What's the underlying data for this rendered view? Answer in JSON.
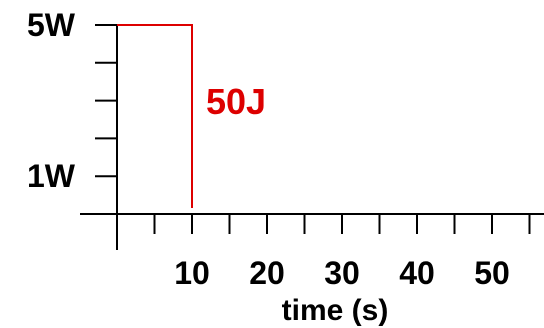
{
  "chart_data": {
    "type": "line",
    "title": "",
    "xlabel": "time (s)",
    "ylabel": "",
    "xlim": [
      0,
      58
    ],
    "ylim": [
      0,
      5
    ],
    "x_ticks": [
      0,
      5,
      10,
      15,
      20,
      25,
      30,
      35,
      40,
      45,
      50,
      55
    ],
    "x_tick_labels": [
      {
        "x": 10,
        "label": "10"
      },
      {
        "x": 20,
        "label": "20"
      },
      {
        "x": 30,
        "label": "30"
      },
      {
        "x": 40,
        "label": "40"
      },
      {
        "x": 50,
        "label": "50"
      }
    ],
    "y_ticks": [
      1,
      2,
      3,
      4,
      5
    ],
    "y_tick_labels": [
      {
        "y": 5,
        "label": "5W"
      },
      {
        "y": 1,
        "label": "1W"
      }
    ],
    "series": [
      {
        "color": "#dd0000",
        "points": [
          [
            0,
            5
          ],
          [
            10,
            5
          ],
          [
            10,
            0
          ]
        ]
      }
    ],
    "annotations": [
      {
        "text": "50J",
        "x": 12,
        "y": 3.2,
        "color": "#dd0000"
      }
    ],
    "grid": false
  }
}
